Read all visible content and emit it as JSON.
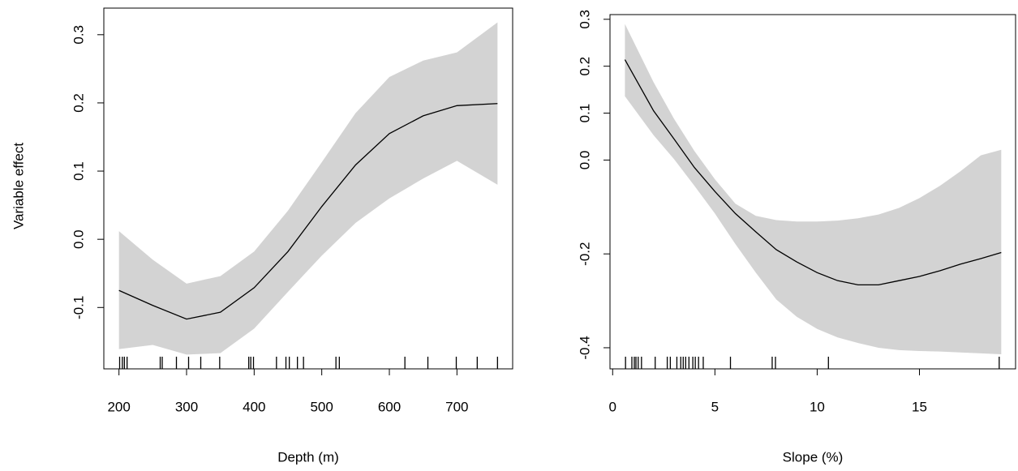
{
  "chart_data": [
    {
      "type": "line",
      "xlabel": "Depth (m)",
      "ylabel": "Variable effect",
      "color": "#000000",
      "band_color": "#d3d3d3",
      "x": [
        200,
        250,
        300,
        350,
        400,
        450,
        500,
        550,
        600,
        650,
        700,
        760
      ],
      "values": [
        -0.075,
        -0.097,
        -0.117,
        -0.107,
        -0.071,
        -0.018,
        0.048,
        0.109,
        0.155,
        0.181,
        0.196,
        0.199
      ],
      "upper": [
        0.012,
        -0.03,
        -0.065,
        -0.054,
        -0.018,
        0.042,
        0.113,
        0.185,
        0.238,
        0.262,
        0.274,
        0.318
      ],
      "lower": [
        -0.161,
        -0.155,
        -0.169,
        -0.167,
        -0.131,
        -0.077,
        -0.024,
        0.024,
        0.06,
        0.089,
        0.115,
        0.08
      ],
      "rug": [
        201,
        205,
        208,
        212,
        261,
        264,
        285,
        303,
        321,
        349,
        392,
        395,
        399,
        433,
        447,
        452,
        464,
        473,
        521,
        526,
        623,
        657,
        699,
        730,
        760
      ],
      "xlim": [
        177.6,
        782.4
      ],
      "xticks": [
        200,
        300,
        400,
        500,
        600,
        700
      ],
      "ylim": [
        -0.19,
        0.339
      ],
      "yticks": [
        -0.1,
        {
          "value": 0,
          "label": "0.0"
        },
        0.1,
        0.2,
        0.3
      ]
    },
    {
      "type": "line",
      "xlabel": "Slope (%)",
      "color": "#000000",
      "band_color": "#d3d3d3",
      "x": [
        0.6,
        2,
        3,
        4,
        5,
        6,
        7,
        8,
        9,
        10,
        11,
        12,
        13,
        14,
        15,
        16,
        17,
        18,
        19
      ],
      "values": [
        0.214,
        0.105,
        0.045,
        -0.016,
        -0.067,
        -0.114,
        -0.153,
        -0.191,
        -0.217,
        -0.24,
        -0.257,
        -0.266,
        -0.266,
        -0.257,
        -0.248,
        -0.236,
        -0.222,
        -0.21,
        -0.197
      ],
      "upper": [
        0.29,
        0.166,
        0.088,
        0.019,
        -0.041,
        -0.093,
        -0.119,
        -0.128,
        -0.131,
        -0.131,
        -0.129,
        -0.124,
        -0.116,
        -0.102,
        -0.081,
        -0.055,
        -0.024,
        0.01,
        0.022
      ],
      "lower": [
        0.136,
        0.053,
        0.002,
        -0.055,
        -0.114,
        -0.179,
        -0.24,
        -0.297,
        -0.334,
        -0.36,
        -0.378,
        -0.39,
        -0.4,
        -0.405,
        -0.407,
        -0.408,
        -0.41,
        -0.412,
        -0.414
      ],
      "rug": [
        0.63,
        0.94,
        1.06,
        1.14,
        1.25,
        1.41,
        2.08,
        2.67,
        2.82,
        3.14,
        3.33,
        3.45,
        3.57,
        3.73,
        3.92,
        4.04,
        4.2,
        4.43,
        5.76,
        7.8,
        7.96,
        10.55,
        18.9
      ],
      "xlim": [
        -0.13,
        19.7
      ],
      "xticks": [
        0,
        5,
        10,
        15
      ],
      "ylim": [
        -0.445,
        0.31
      ],
      "yticks": [
        -0.4,
        -0.2,
        {
          "value": 0,
          "label": "0.0"
        },
        0.1,
        0.2,
        0.3
      ]
    }
  ]
}
